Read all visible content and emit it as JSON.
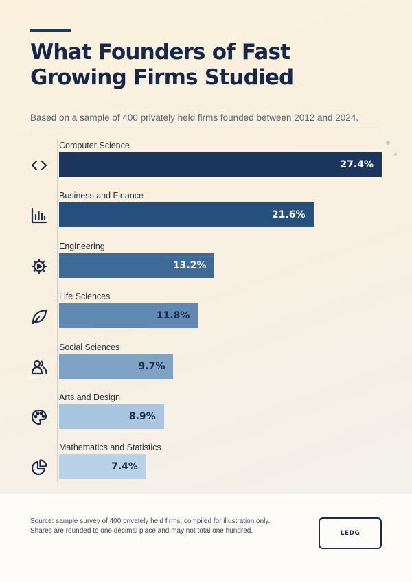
{
  "title": "What Founders of Fast Growing Firms Studied",
  "subtitle": "Based on a sample of 400 privately held firms founded between 2012 and 2024.",
  "chart_data": {
    "type": "bar",
    "orientation": "horizontal",
    "title": "What Founders of Fast Growing Firms Studied",
    "subtitle": "Based on a sample of 400 privately held firms founded between 2012 and 2024.",
    "categories": [
      "Computer Science",
      "Business and Finance",
      "Engineering",
      "Life Sciences",
      "Social Sciences",
      "Arts and Design",
      "Mathematics and Statistics"
    ],
    "values": [
      27.4,
      21.6,
      13.2,
      11.8,
      9.7,
      8.9,
      7.4
    ],
    "value_labels": [
      "27.4%",
      "21.6%",
      "13.2%",
      "11.8%",
      "9.7%",
      "8.9%",
      "7.4%"
    ],
    "icons": [
      "code-icon",
      "bar-chart-icon",
      "gear-icon",
      "leaf-icon",
      "people-icon",
      "palette-icon",
      "pie-chart-icon"
    ],
    "colors": [
      "#1b365d",
      "#25507e",
      "#3e6a98",
      "#5f89b2",
      "#7fa3c7",
      "#a9c6e1",
      "#b8d2e9"
    ],
    "value_text_colors": [
      "#ffffff",
      "#ffffff",
      "#ffffff",
      "#1c2d4a",
      "#1c2d4a",
      "#1c2d4a",
      "#1c2d4a"
    ],
    "xlim": [
      0,
      27.4
    ],
    "grid": false,
    "legend": "none",
    "xlabel": "",
    "ylabel": ""
  },
  "footer": {
    "note_line1": "Source: sample survey of 400 privately held firms, compiled for illustration only.",
    "note_line2": "Shares are rounded to one decimal place and may not total one hundred.",
    "logo_text": "LEDG"
  }
}
